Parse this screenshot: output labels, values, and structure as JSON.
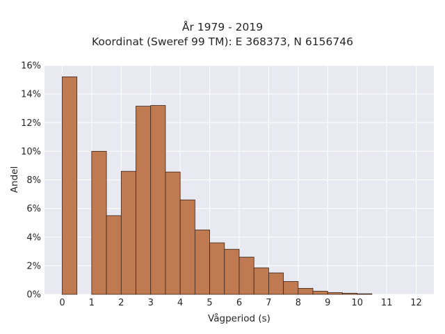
{
  "chart_data": {
    "type": "bar",
    "title_lines": [
      "År 1979 - 2019",
      "Koordinat (Sweref 99 TM): E 368373, N 6156746"
    ],
    "xlabel": "Vågperiod (s)",
    "ylabel": "Andel",
    "xlim": [
      -0.6,
      12.6
    ],
    "ylim": [
      0,
      16
    ],
    "x_ticks": [
      0,
      1,
      2,
      3,
      4,
      5,
      6,
      7,
      8,
      9,
      10,
      11,
      12
    ],
    "y_ticks": [
      0,
      2,
      4,
      6,
      8,
      10,
      12,
      14,
      16
    ],
    "y_tick_suffix": "%",
    "bin_width": 0.5,
    "grid": true,
    "bar_color": "#c07a52",
    "bar_edge_color": "#3a2418",
    "background_color": "#e9e9f1",
    "bars": [
      {
        "x": 0.25,
        "value": 15.2
      },
      {
        "x": 1.25,
        "value": 10.0
      },
      {
        "x": 1.75,
        "value": 5.5
      },
      {
        "x": 2.25,
        "value": 8.6
      },
      {
        "x": 2.75,
        "value": 13.15
      },
      {
        "x": 3.25,
        "value": 13.2
      },
      {
        "x": 3.75,
        "value": 8.55
      },
      {
        "x": 4.25,
        "value": 6.6
      },
      {
        "x": 4.75,
        "value": 4.5
      },
      {
        "x": 5.25,
        "value": 3.6
      },
      {
        "x": 5.75,
        "value": 3.15
      },
      {
        "x": 6.25,
        "value": 2.6
      },
      {
        "x": 6.75,
        "value": 1.85
      },
      {
        "x": 7.25,
        "value": 1.5
      },
      {
        "x": 7.75,
        "value": 0.9
      },
      {
        "x": 8.25,
        "value": 0.42
      },
      {
        "x": 8.75,
        "value": 0.22
      },
      {
        "x": 9.25,
        "value": 0.12
      },
      {
        "x": 9.75,
        "value": 0.08
      },
      {
        "x": 10.25,
        "value": 0.04
      }
    ]
  }
}
